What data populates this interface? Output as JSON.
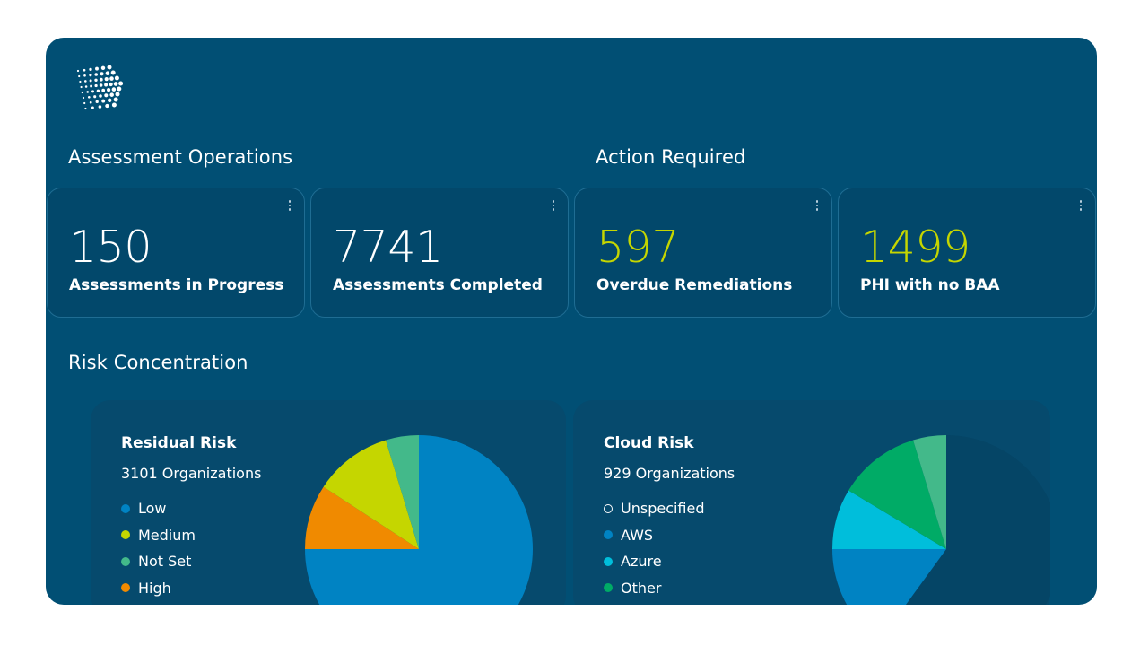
{
  "sections": {
    "assessment_operations": "Assessment Operations",
    "action_required": "Action Required",
    "risk_concentration": "Risk Concentration"
  },
  "cards": [
    {
      "value": "150",
      "label": "Assessments in Progress",
      "highlight": false
    },
    {
      "value": "7741",
      "label": "Assessments Completed",
      "highlight": false
    },
    {
      "value": "597",
      "label": "Overdue Remediations",
      "highlight": true
    },
    {
      "value": "1499",
      "label": "PHI with no BAA",
      "highlight": true
    }
  ],
  "colors": {
    "background": "#014f74",
    "highlight": "#c5d600"
  },
  "chart_data": [
    {
      "type": "pie",
      "title": "Residual Risk",
      "subtitle": "3101 Organizations",
      "legend": [
        {
          "name": "Low",
          "color": "#0083c3"
        },
        {
          "name": "Medium",
          "color": "#c5d600"
        },
        {
          "name": "Not Set",
          "color": "#43b98a"
        },
        {
          "name": "High",
          "color": "#f08a00"
        }
      ],
      "slices": [
        {
          "name": "Low",
          "value": 75.0,
          "color": "#0083c3"
        },
        {
          "name": "High",
          "value": 9.2,
          "color": "#f08a00"
        },
        {
          "name": "Medium",
          "value": 11.1,
          "color": "#c5d600"
        },
        {
          "name": "Not Set",
          "value": 4.7,
          "color": "#43b98a"
        }
      ]
    },
    {
      "type": "pie",
      "title": "Cloud Risk",
      "subtitle": "929 Organizations",
      "legend": [
        {
          "name": "Unspecified",
          "color": "#064a6d",
          "outline": true
        },
        {
          "name": "AWS",
          "color": "#0083c3"
        },
        {
          "name": "Azure",
          "color": "#00bedb"
        },
        {
          "name": "Other",
          "color": "#00ab66"
        }
      ],
      "slices": [
        {
          "name": "Unspecified",
          "value": 60.0,
          "color": "#054566"
        },
        {
          "name": "AWS",
          "value": 15.0,
          "color": "#0083c3"
        },
        {
          "name": "Azure",
          "value": 8.6,
          "color": "#00bedb"
        },
        {
          "name": "Other",
          "value": 11.7,
          "color": "#00ab66"
        },
        {
          "name": "Other (light)",
          "value": 4.7,
          "color": "#43b98a"
        }
      ]
    }
  ]
}
